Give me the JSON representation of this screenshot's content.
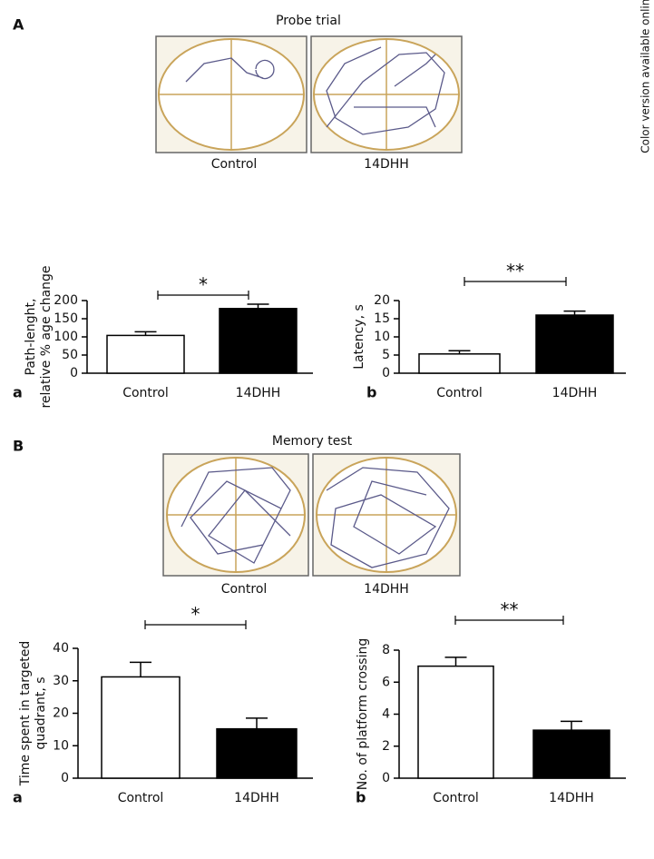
{
  "side_note": "Color version available online",
  "panels": [
    {
      "label": "A",
      "figure_title": "Probe trial",
      "captions": [
        "Control",
        "14DHH"
      ]
    },
    {
      "label": "B",
      "figure_title": "Memory test",
      "captions": [
        "Control",
        "14DHH"
      ]
    }
  ],
  "chart_data": [
    {
      "type": "bar",
      "panel": "a",
      "ylabel": [
        "Path-lenght,",
        "relative % age change"
      ],
      "categories": [
        "Control",
        "14DHH"
      ],
      "values": [
        104,
        178
      ],
      "errors": [
        10,
        12
      ],
      "colors": [
        "#ffffff",
        "#000000"
      ],
      "ylim": [
        0,
        200
      ],
      "yticks": [
        0,
        50,
        100,
        150,
        200
      ],
      "significance": "*"
    },
    {
      "type": "bar",
      "panel": "b",
      "ylabel": [
        "Latency, s"
      ],
      "categories": [
        "Control",
        "14DHH"
      ],
      "values": [
        5.3,
        16
      ],
      "errors": [
        0.9,
        1.1
      ],
      "colors": [
        "#ffffff",
        "#000000"
      ],
      "ylim": [
        0,
        20
      ],
      "yticks": [
        0,
        5,
        10,
        15,
        20
      ],
      "significance": "**"
    },
    {
      "type": "bar",
      "panel": "a",
      "ylabel": [
        "Time spent in targeted",
        "quadrant, s"
      ],
      "categories": [
        "Control",
        "14DHH"
      ],
      "values": [
        31.2,
        15.2
      ],
      "errors": [
        4.5,
        3.3
      ],
      "colors": [
        "#ffffff",
        "#000000"
      ],
      "ylim": [
        0,
        40
      ],
      "yticks": [
        0,
        10,
        20,
        30,
        40
      ],
      "significance": "*"
    },
    {
      "type": "bar",
      "panel": "b",
      "ylabel": [
        "No. of platform crossing"
      ],
      "categories": [
        "Control",
        "14DHH"
      ],
      "values": [
        7.0,
        3.0
      ],
      "errors": [
        0.55,
        0.55
      ],
      "colors": [
        "#ffffff",
        "#000000"
      ],
      "ylim": [
        0,
        8
      ],
      "yticks": [
        0,
        2,
        4,
        6,
        8
      ],
      "significance": "**"
    }
  ]
}
